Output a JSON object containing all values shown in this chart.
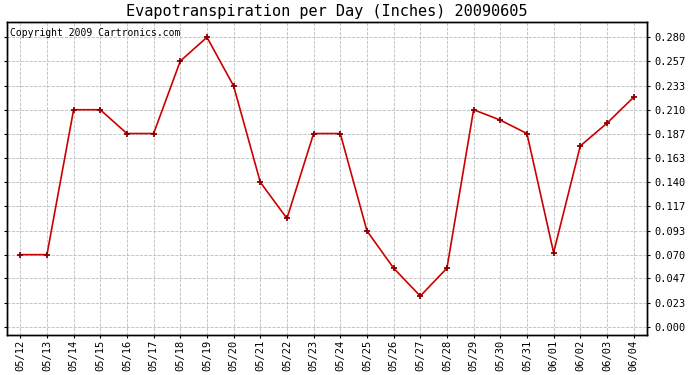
{
  "title": "Evapotranspiration per Day (Inches) 20090605",
  "copyright_text": "Copyright 2009 Cartronics.com",
  "dates": [
    "05/12",
    "05/13",
    "05/14",
    "05/15",
    "05/16",
    "05/17",
    "05/18",
    "05/19",
    "05/20",
    "05/21",
    "05/22",
    "05/23",
    "05/24",
    "05/25",
    "05/26",
    "05/27",
    "05/28",
    "05/29",
    "05/30",
    "05/31",
    "06/01",
    "06/02",
    "06/03",
    "06/04"
  ],
  "values": [
    0.07,
    0.07,
    0.21,
    0.21,
    0.187,
    0.187,
    0.257,
    0.28,
    0.233,
    0.14,
    0.105,
    0.187,
    0.187,
    0.093,
    0.057,
    0.03,
    0.057,
    0.21,
    0.2,
    0.187,
    0.072,
    0.175,
    0.197,
    0.222
  ],
  "line_color": "#cc0000",
  "marker_color": "#880000",
  "background_color": "#ffffff",
  "plot_bg_color": "#ffffff",
  "grid_color": "#bbbbbb",
  "yticks": [
    0.0,
    0.023,
    0.047,
    0.07,
    0.093,
    0.117,
    0.14,
    0.163,
    0.187,
    0.21,
    0.233,
    0.257,
    0.28
  ],
  "ylim": [
    -0.008,
    0.295
  ],
  "title_fontsize": 11,
  "tick_fontsize": 7.5,
  "copyright_fontsize": 7
}
